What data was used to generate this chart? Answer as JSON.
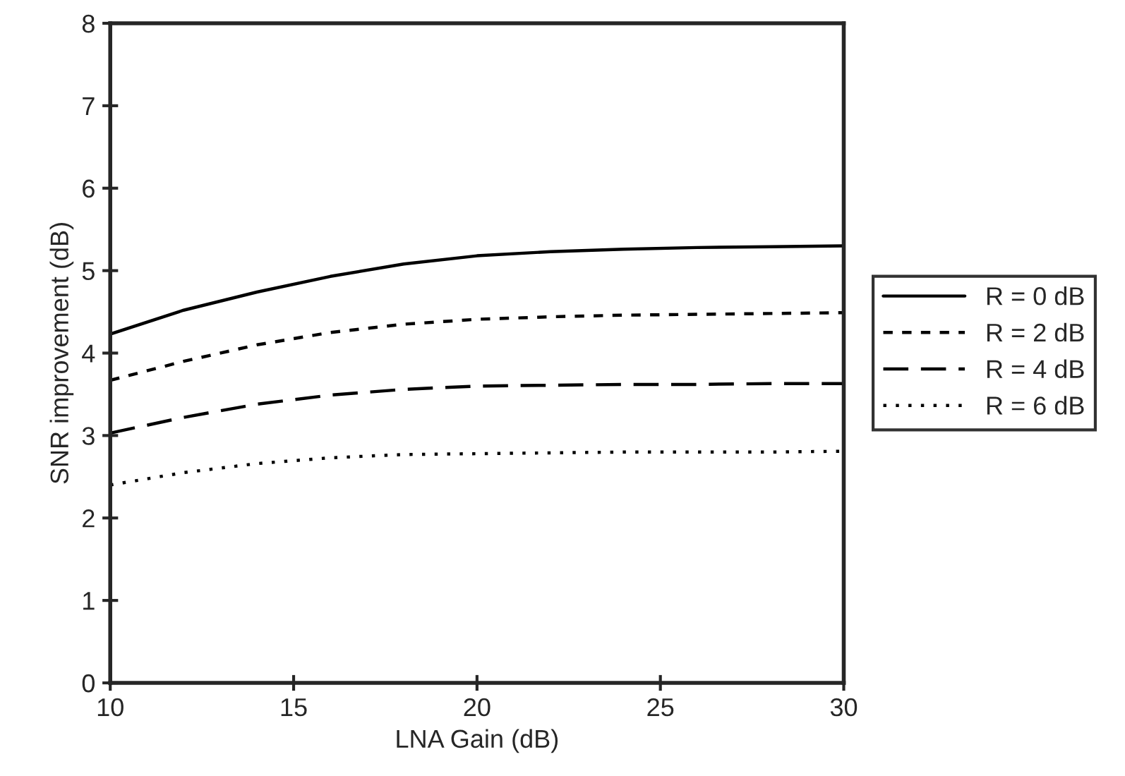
{
  "chart_data": {
    "type": "line",
    "xlabel": "LNA Gain (dB)",
    "ylabel": "SNR improvement (dB)",
    "x": [
      10,
      12,
      14,
      16,
      18,
      20,
      22,
      24,
      26,
      28,
      30
    ],
    "series": [
      {
        "name": "R = 0 dB",
        "color": "#000000",
        "line_style": "solid",
        "values": [
          4.23,
          4.52,
          4.74,
          4.93,
          5.08,
          5.18,
          5.23,
          5.26,
          5.28,
          5.29,
          5.3
        ]
      },
      {
        "name": "R = 2 dB",
        "color": "#000000",
        "line_style": "dashed_short",
        "values": [
          3.67,
          3.9,
          4.1,
          4.25,
          4.35,
          4.41,
          4.44,
          4.46,
          4.47,
          4.48,
          4.49
        ]
      },
      {
        "name": "R = 4 dB",
        "color": "#000000",
        "line_style": "dashed",
        "values": [
          3.03,
          3.22,
          3.38,
          3.49,
          3.56,
          3.6,
          3.61,
          3.62,
          3.62,
          3.63,
          3.63
        ]
      },
      {
        "name": "R = 6 dB",
        "color": "#000000",
        "line_style": "dotted",
        "values": [
          2.4,
          2.55,
          2.66,
          2.73,
          2.77,
          2.78,
          2.79,
          2.8,
          2.8,
          2.8,
          2.81
        ]
      }
    ],
    "xlim": [
      10,
      30
    ],
    "xticks": [
      10,
      15,
      20,
      25,
      30
    ],
    "ylim": [
      0,
      8
    ],
    "yticks": [
      0,
      1,
      2,
      3,
      4,
      5,
      6,
      7,
      8
    ],
    "grid": false,
    "legend": "right"
  }
}
